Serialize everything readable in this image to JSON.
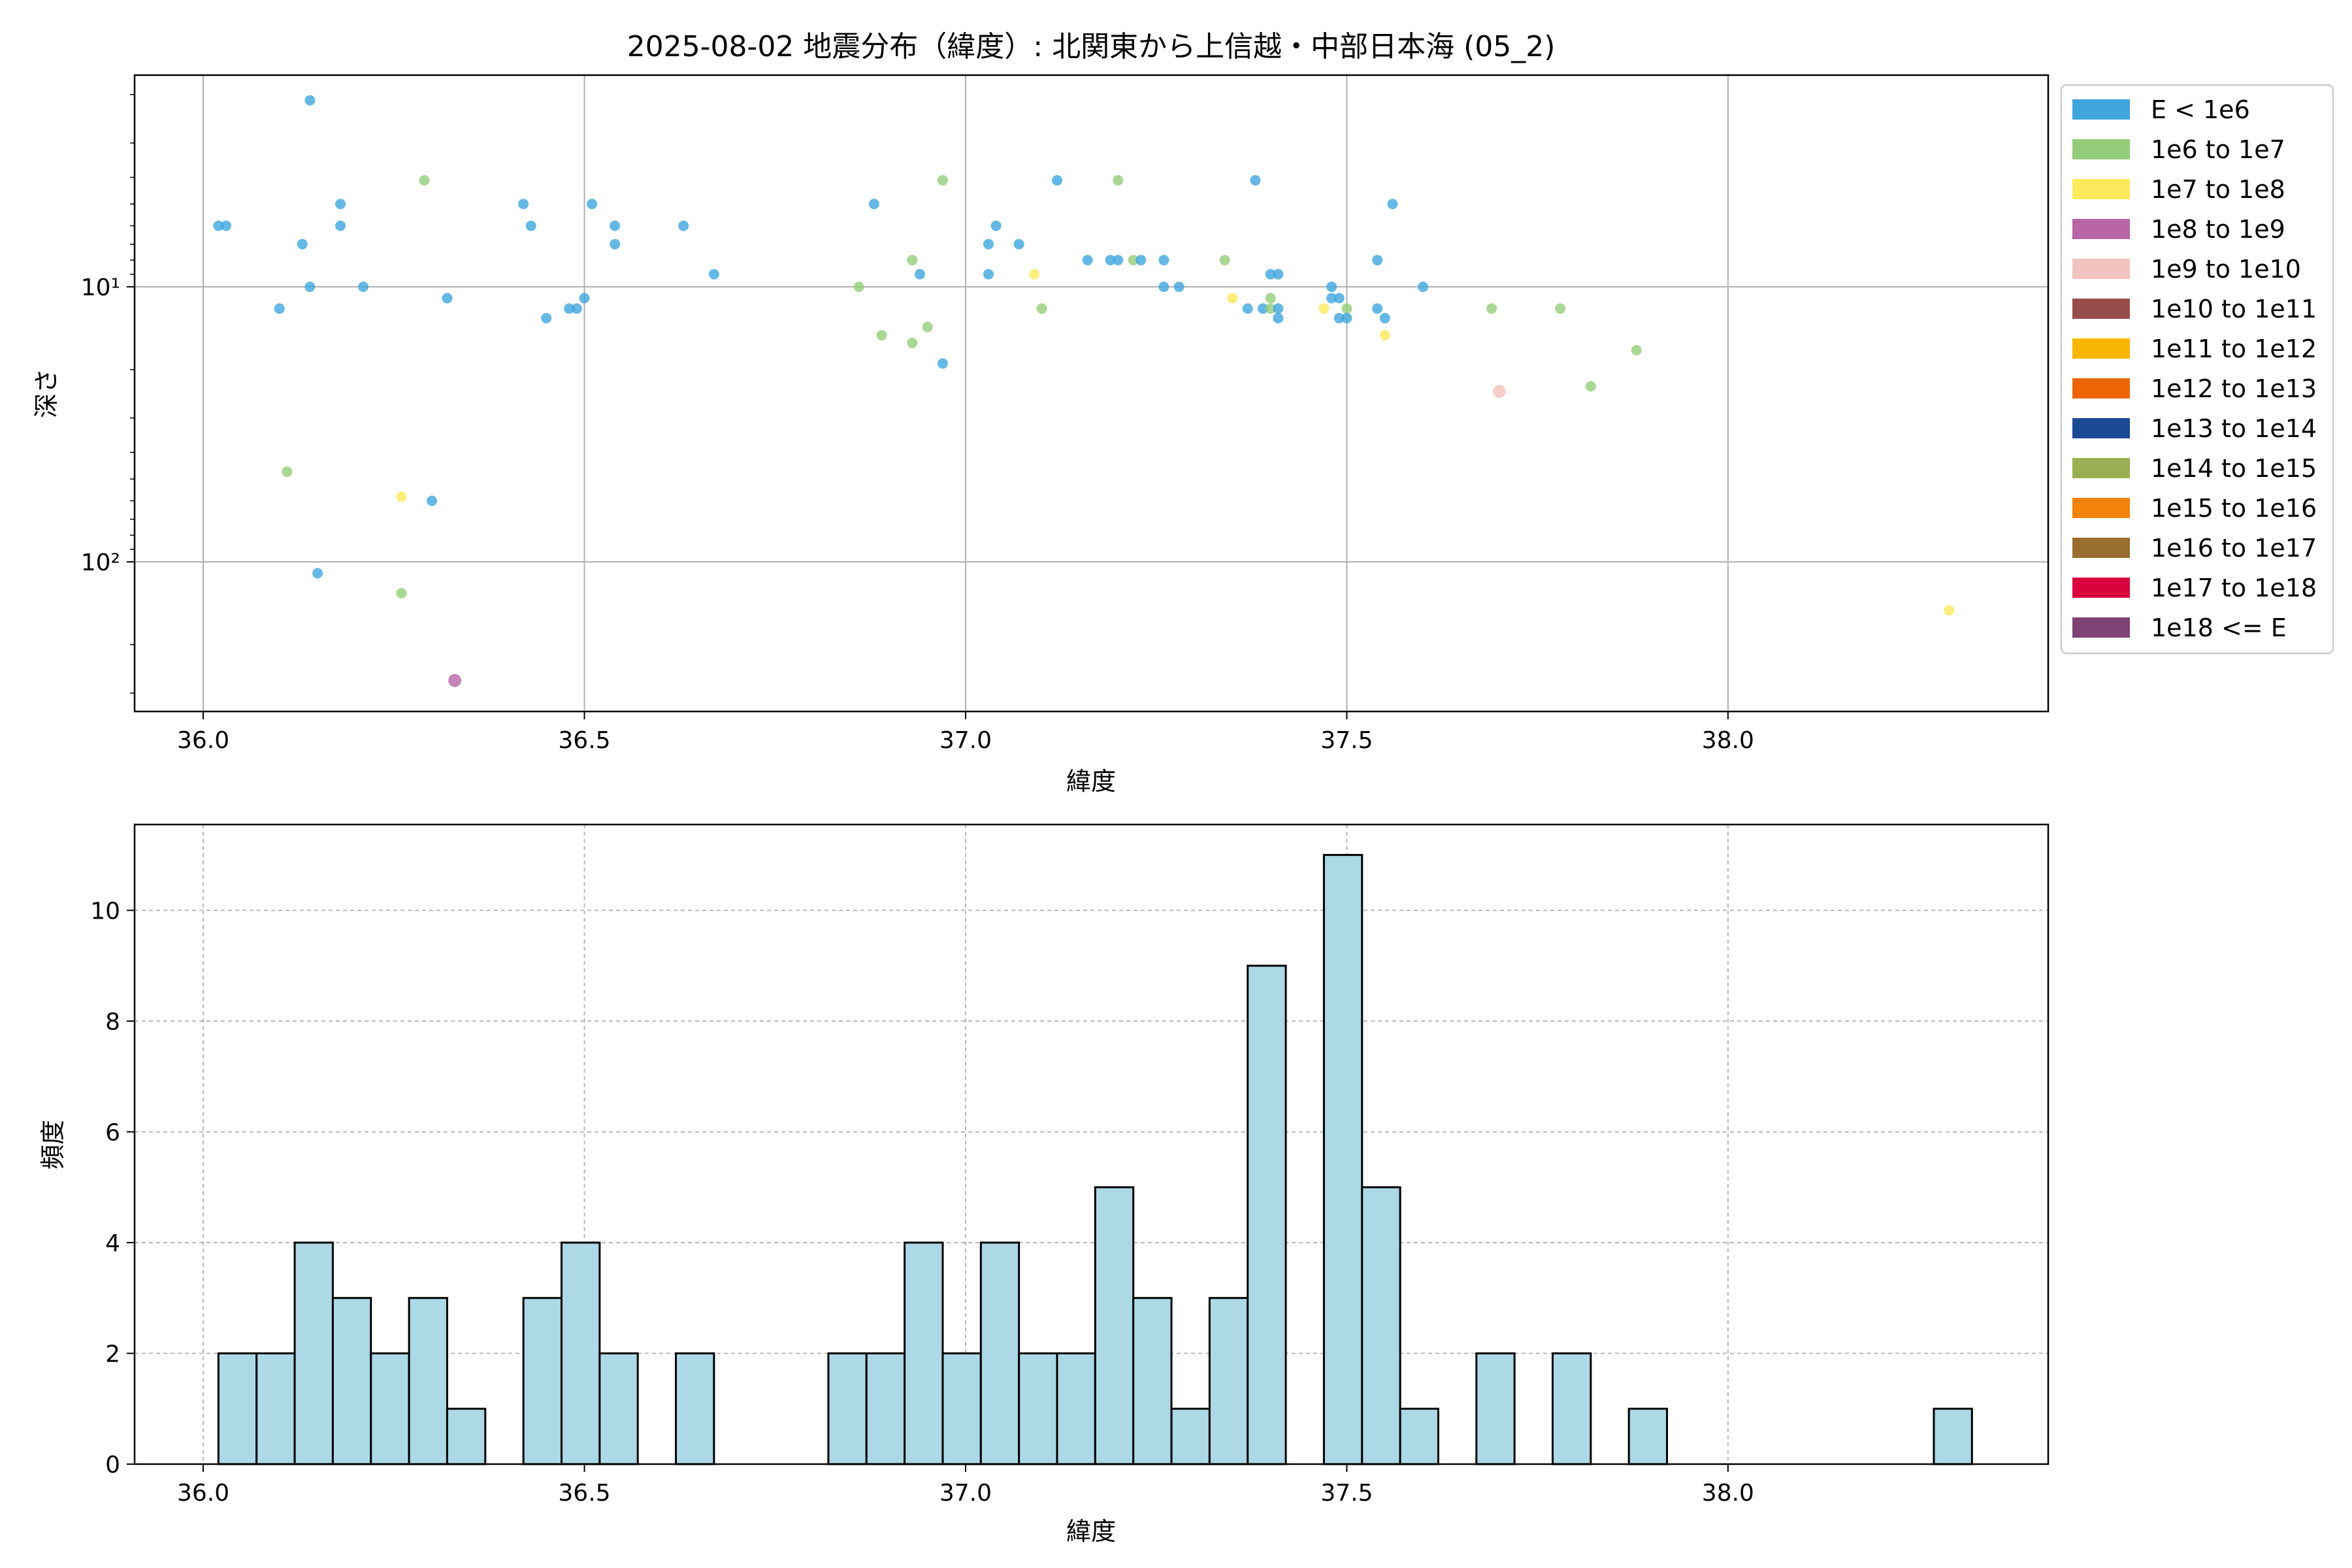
{
  "figure": {
    "title": "2025-08-02 地震分布（緯度）: 北関東から上信越・中部日本海 (05_2)"
  },
  "chart_data": [
    {
      "type": "scatter",
      "title": "2025-08-02 地震分布（緯度）: 北関東から上信越・中部日本海 (05_2)",
      "xlabel": "緯度",
      "ylabel": "深さ",
      "xlim": [
        35.91,
        38.42
      ],
      "ylim": [
        350,
        1.7
      ],
      "y_scale": "log",
      "y_inverted": true,
      "grid": true,
      "x_ticks": [
        {
          "value": 36.0,
          "label": "36.0"
        },
        {
          "value": 36.5,
          "label": "36.5"
        },
        {
          "value": 37.0,
          "label": "37.0"
        },
        {
          "value": 37.5,
          "label": "37.5"
        },
        {
          "value": 38.0,
          "label": "38.0"
        }
      ],
      "y_ticks": [
        {
          "value": 10,
          "label": "10¹"
        },
        {
          "value": 100,
          "label": "10²"
        }
      ],
      "legend_position": "outside-right",
      "legend": [
        {
          "label": "E < 1e6",
          "color": "#3fa6dd"
        },
        {
          "label": "1e6 to 1e7",
          "color": "#94cd79"
        },
        {
          "label": "1e7 to 1e8",
          "color": "#fde95c"
        },
        {
          "label": "1e8 to 1e9",
          "color": "#b866a6"
        },
        {
          "label": "1e9 to 1e10",
          "color": "#f3c3bf"
        },
        {
          "label": "1e10 to 1e11",
          "color": "#964e4c"
        },
        {
          "label": "1e11 to 1e12",
          "color": "#f9b504"
        },
        {
          "label": "1e12 to 1e13",
          "color": "#ec6405"
        },
        {
          "label": "1e13 to 1e14",
          "color": "#1a4a93"
        },
        {
          "label": "1e14 to 1e15",
          "color": "#9aaf52"
        },
        {
          "label": "1e15 to 1e16",
          "color": "#f28209"
        },
        {
          "label": "1e16 to 1e17",
          "color": "#996e2e"
        },
        {
          "label": "1e17 to 1e18",
          "color": "#da033d"
        },
        {
          "label": "1e18 <= E",
          "color": "#7f4274"
        }
      ],
      "points": [
        {
          "x": 36.02,
          "y": 6,
          "c": 0
        },
        {
          "x": 36.03,
          "y": 6,
          "c": 0
        },
        {
          "x": 36.1,
          "y": 12,
          "c": 0
        },
        {
          "x": 36.11,
          "y": 47,
          "c": 1
        },
        {
          "x": 36.13,
          "y": 7,
          "c": 0
        },
        {
          "x": 36.14,
          "y": 2.1,
          "c": 0
        },
        {
          "x": 36.14,
          "y": 10,
          "c": 0
        },
        {
          "x": 36.15,
          "y": 110,
          "c": 0
        },
        {
          "x": 36.18,
          "y": 5,
          "c": 0
        },
        {
          "x": 36.18,
          "y": 6,
          "c": 0
        },
        {
          "x": 36.21,
          "y": 10,
          "c": 0
        },
        {
          "x": 36.26,
          "y": 58,
          "c": 2
        },
        {
          "x": 36.26,
          "y": 130,
          "c": 1
        },
        {
          "x": 36.29,
          "y": 4.1,
          "c": 1
        },
        {
          "x": 36.3,
          "y": 60,
          "c": 0
        },
        {
          "x": 36.32,
          "y": 11,
          "c": 0
        },
        {
          "x": 36.33,
          "y": 270,
          "c": 3
        },
        {
          "x": 36.42,
          "y": 5,
          "c": 0
        },
        {
          "x": 36.43,
          "y": 6,
          "c": 0
        },
        {
          "x": 36.45,
          "y": 13,
          "c": 0
        },
        {
          "x": 36.48,
          "y": 12,
          "c": 0
        },
        {
          "x": 36.49,
          "y": 12,
          "c": 0
        },
        {
          "x": 36.5,
          "y": 11,
          "c": 0
        },
        {
          "x": 36.51,
          "y": 5,
          "c": 0
        },
        {
          "x": 36.54,
          "y": 6,
          "c": 0
        },
        {
          "x": 36.54,
          "y": 7,
          "c": 0
        },
        {
          "x": 36.63,
          "y": 6,
          "c": 0
        },
        {
          "x": 36.67,
          "y": 9,
          "c": 0
        },
        {
          "x": 36.86,
          "y": 10,
          "c": 1
        },
        {
          "x": 36.88,
          "y": 5,
          "c": 0
        },
        {
          "x": 36.89,
          "y": 15,
          "c": 1
        },
        {
          "x": 36.93,
          "y": 8,
          "c": 1
        },
        {
          "x": 36.93,
          "y": 16,
          "c": 1
        },
        {
          "x": 36.94,
          "y": 9,
          "c": 0
        },
        {
          "x": 36.95,
          "y": 14,
          "c": 1
        },
        {
          "x": 36.97,
          "y": 4.1,
          "c": 1
        },
        {
          "x": 36.97,
          "y": 19,
          "c": 0
        },
        {
          "x": 37.03,
          "y": 7,
          "c": 0
        },
        {
          "x": 37.03,
          "y": 9,
          "c": 0
        },
        {
          "x": 37.04,
          "y": 6,
          "c": 0
        },
        {
          "x": 37.07,
          "y": 7,
          "c": 0
        },
        {
          "x": 37.09,
          "y": 9,
          "c": 2
        },
        {
          "x": 37.1,
          "y": 12,
          "c": 1
        },
        {
          "x": 37.12,
          "y": 4.1,
          "c": 0
        },
        {
          "x": 37.16,
          "y": 8,
          "c": 0
        },
        {
          "x": 37.19,
          "y": 8,
          "c": 0
        },
        {
          "x": 37.2,
          "y": 4.1,
          "c": 1
        },
        {
          "x": 37.2,
          "y": 8,
          "c": 0
        },
        {
          "x": 37.22,
          "y": 8,
          "c": 1
        },
        {
          "x": 37.23,
          "y": 8,
          "c": 0
        },
        {
          "x": 37.26,
          "y": 8,
          "c": 0
        },
        {
          "x": 37.26,
          "y": 10,
          "c": 0
        },
        {
          "x": 37.28,
          "y": 10,
          "c": 0
        },
        {
          "x": 37.34,
          "y": 8,
          "c": 1
        },
        {
          "x": 37.35,
          "y": 11,
          "c": 2
        },
        {
          "x": 37.37,
          "y": 12,
          "c": 0
        },
        {
          "x": 37.38,
          "y": 4.1,
          "c": 0
        },
        {
          "x": 37.39,
          "y": 12,
          "c": 0
        },
        {
          "x": 37.4,
          "y": 9,
          "c": 0
        },
        {
          "x": 37.4,
          "y": 11,
          "c": 1
        },
        {
          "x": 37.4,
          "y": 12,
          "c": 1
        },
        {
          "x": 37.41,
          "y": 9,
          "c": 0
        },
        {
          "x": 37.41,
          "y": 12,
          "c": 0
        },
        {
          "x": 37.41,
          "y": 13,
          "c": 0
        },
        {
          "x": 37.47,
          "y": 12,
          "c": 2
        },
        {
          "x": 37.48,
          "y": 10,
          "c": 0
        },
        {
          "x": 37.48,
          "y": 11,
          "c": 0
        },
        {
          "x": 37.49,
          "y": 11,
          "c": 0
        },
        {
          "x": 37.49,
          "y": 13,
          "c": 0
        },
        {
          "x": 37.5,
          "y": 12,
          "c": 1
        },
        {
          "x": 37.5,
          "y": 13,
          "c": 0
        },
        {
          "x": 37.54,
          "y": 8,
          "c": 0
        },
        {
          "x": 37.54,
          "y": 12,
          "c": 0
        },
        {
          "x": 37.55,
          "y": 13,
          "c": 0
        },
        {
          "x": 37.55,
          "y": 15,
          "c": 2
        },
        {
          "x": 37.56,
          "y": 5,
          "c": 0
        },
        {
          "x": 37.6,
          "y": 10,
          "c": 0
        },
        {
          "x": 37.69,
          "y": 12,
          "c": 1
        },
        {
          "x": 37.7,
          "y": 24,
          "c": 4
        },
        {
          "x": 37.78,
          "y": 12,
          "c": 1
        },
        {
          "x": 37.82,
          "y": 23,
          "c": 1
        },
        {
          "x": 37.88,
          "y": 17,
          "c": 1
        },
        {
          "x": 38.29,
          "y": 150,
          "c": 2
        }
      ]
    },
    {
      "type": "bar",
      "title": "",
      "xlabel": "緯度",
      "ylabel": "頻度",
      "xlim": [
        35.91,
        38.42
      ],
      "ylim": [
        0,
        11.55
      ],
      "grid": true,
      "bar_color": "#add8e6",
      "edge_color": "#000000",
      "bin_width": 0.05,
      "x_ticks": [
        {
          "value": 36.0,
          "label": "36.0"
        },
        {
          "value": 36.5,
          "label": "36.5"
        },
        {
          "value": 37.0,
          "label": "37.0"
        },
        {
          "value": 37.5,
          "label": "37.5"
        },
        {
          "value": 38.0,
          "label": "38.0"
        }
      ],
      "y_ticks": [
        {
          "value": 0,
          "label": "0"
        },
        {
          "value": 2,
          "label": "2"
        },
        {
          "value": 4,
          "label": "4"
        },
        {
          "value": 6,
          "label": "6"
        },
        {
          "value": 8,
          "label": "8"
        },
        {
          "value": 10,
          "label": "10"
        }
      ],
      "bins": [
        {
          "x": 36.02,
          "count": 2
        },
        {
          "x": 36.07,
          "count": 2
        },
        {
          "x": 36.12,
          "count": 4
        },
        {
          "x": 36.17,
          "count": 3
        },
        {
          "x": 36.22,
          "count": 2
        },
        {
          "x": 36.27,
          "count": 3
        },
        {
          "x": 36.32,
          "count": 1
        },
        {
          "x": 36.42,
          "count": 3
        },
        {
          "x": 36.47,
          "count": 4
        },
        {
          "x": 36.52,
          "count": 2
        },
        {
          "x": 36.62,
          "count": 2
        },
        {
          "x": 36.82,
          "count": 2
        },
        {
          "x": 36.87,
          "count": 2
        },
        {
          "x": 36.92,
          "count": 4
        },
        {
          "x": 36.97,
          "count": 2
        },
        {
          "x": 37.02,
          "count": 4
        },
        {
          "x": 37.07,
          "count": 2
        },
        {
          "x": 37.12,
          "count": 2
        },
        {
          "x": 37.17,
          "count": 5
        },
        {
          "x": 37.22,
          "count": 3
        },
        {
          "x": 37.27,
          "count": 1
        },
        {
          "x": 37.32,
          "count": 3
        },
        {
          "x": 37.37,
          "count": 9
        },
        {
          "x": 37.47,
          "count": 11
        },
        {
          "x": 37.52,
          "count": 5
        },
        {
          "x": 37.57,
          "count": 1
        },
        {
          "x": 37.67,
          "count": 2
        },
        {
          "x": 37.77,
          "count": 2
        },
        {
          "x": 37.87,
          "count": 1
        },
        {
          "x": 38.27,
          "count": 1
        }
      ]
    }
  ]
}
